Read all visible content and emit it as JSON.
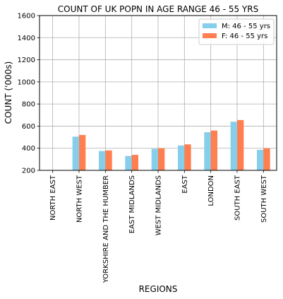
{
  "chart_data": {
    "type": "bar",
    "title": "COUNT OF UK POPN IN AGE RANGE 46 - 55 YRS",
    "xlabel": "REGIONS",
    "ylabel": "COUNT ('000s)",
    "ylim": [
      200,
      1600
    ],
    "yticks": [
      200,
      400,
      600,
      800,
      1000,
      1200,
      1400,
      1600
    ],
    "grid": true,
    "legend_position": "top-right",
    "categories": [
      "NORTH EAST",
      "NORTH WEST",
      "YORKSHIRE AND THE HUMBER",
      "EAST MIDLANDS",
      "WEST MIDLANDS",
      "EAST",
      "LONDON",
      "SOUTH EAST",
      "SOUTH WEST"
    ],
    "series": [
      {
        "name": "M: 46 - 55 yrs",
        "color": "#87ceeb",
        "values": [
          185,
          505,
          375,
          330,
          395,
          425,
          545,
          640,
          385
        ]
      },
      {
        "name": "F: 46 - 55 yrs",
        "color": "#ff7f50",
        "values": [
          190,
          520,
          380,
          340,
          400,
          435,
          560,
          655,
          400
        ]
      }
    ]
  }
}
